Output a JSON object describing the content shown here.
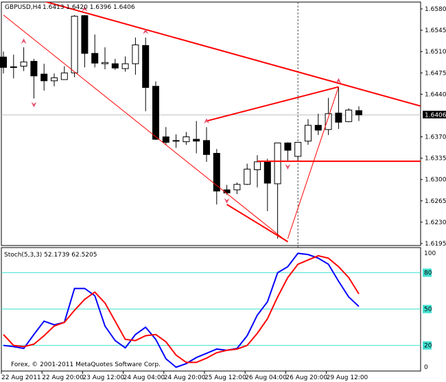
{
  "header": {
    "symbol": "GBPUSD,H4",
    "ohlc": "1.6413 1.6420 1.6396 1.6406"
  },
  "indicator": {
    "label": "Stoch(5,3,3) 52.1739 62.5205"
  },
  "copyright": "Forex, © 2001-2011 MetaQuotes Software Corp.",
  "colors": {
    "background": "#ffffff",
    "bull_body": "#ffffff",
    "bear_body": "#000000",
    "trend_lines": "#ff0000",
    "fractals": "#e8506e",
    "stoch_main": "#0000ff",
    "stoch_signal": "#ff0000",
    "stoch_levels": "#40e0d0",
    "price_line": "#c0c0c0"
  },
  "chart_data": [
    {
      "type": "candlestick",
      "title": "GBPUSD,H4",
      "price_axis": {
        "min": 1.6195,
        "max": 1.658,
        "ticks": [
          "1.6580",
          "1.6545",
          "1.6510",
          "1.6475",
          "1.6440",
          "1.6370",
          "1.6335",
          "1.6300",
          "1.6265",
          "1.6230",
          "1.6195"
        ],
        "current_price": "1.6406"
      },
      "time_labels": [
        "22 Aug 2011",
        "22 Aug 20:00",
        "23 Aug 12:00",
        "24 Aug 04:00",
        "24 Aug 20:00",
        "25 Aug 12:00",
        "26 Aug 04:00",
        "26 Aug 20:00",
        "29 Aug 12:00"
      ],
      "time_label_every_bars": 4,
      "candles": [
        [
          1.6501,
          1.651,
          1.6474,
          1.6484
        ],
        [
          1.6485,
          1.6505,
          1.6466,
          1.6485
        ],
        [
          1.6486,
          1.6517,
          1.6478,
          1.6493
        ],
        [
          1.6494,
          1.6498,
          1.6433,
          1.647
        ],
        [
          1.6473,
          1.649,
          1.6446,
          1.6462
        ],
        [
          1.6462,
          1.6474,
          1.6453,
          1.6467
        ],
        [
          1.6464,
          1.6486,
          1.6464,
          1.6475
        ],
        [
          1.6475,
          1.657,
          1.6468,
          1.6568
        ],
        [
          1.6569,
          1.657,
          1.6484,
          1.6507
        ],
        [
          1.6507,
          1.6538,
          1.6484,
          1.6491
        ],
        [
          1.649,
          1.6517,
          1.6481,
          1.6492
        ],
        [
          1.649,
          1.6498,
          1.648,
          1.6483
        ],
        [
          1.6482,
          1.6502,
          1.6477,
          1.649
        ],
        [
          1.649,
          1.6533,
          1.6472,
          1.6521
        ],
        [
          1.652,
          1.6533,
          1.6412,
          1.6451
        ],
        [
          1.6453,
          1.6461,
          1.6365,
          1.6366
        ],
        [
          1.637,
          1.6386,
          1.6357,
          1.6361
        ],
        [
          1.6364,
          1.6374,
          1.6352,
          1.6364
        ],
        [
          1.6362,
          1.6378,
          1.6357,
          1.637
        ],
        [
          1.6366,
          1.6396,
          1.6343,
          1.6363
        ],
        [
          1.6364,
          1.6386,
          1.6329,
          1.6341
        ],
        [
          1.6343,
          1.635,
          1.6259,
          1.6281
        ],
        [
          1.6283,
          1.6291,
          1.6275,
          1.6278
        ],
        [
          1.6283,
          1.6295,
          1.6276,
          1.6292
        ],
        [
          1.6292,
          1.6326,
          1.6291,
          1.6317
        ],
        [
          1.6316,
          1.634,
          1.6287,
          1.6329
        ],
        [
          1.6329,
          1.6334,
          1.6248,
          1.6294
        ],
        [
          1.6293,
          1.636,
          1.6203,
          1.636
        ],
        [
          1.636,
          1.6361,
          1.6331,
          1.6348
        ],
        [
          1.6338,
          1.6361,
          1.6331,
          1.6361
        ],
        [
          1.6363,
          1.6399,
          1.6357,
          1.6389
        ],
        [
          1.6389,
          1.6408,
          1.6373,
          1.6381
        ],
        [
          1.6382,
          1.6434,
          1.6373,
          1.6408
        ],
        [
          1.6409,
          1.6452,
          1.6383,
          1.6394
        ],
        [
          1.6395,
          1.6417,
          1.6394,
          1.6414
        ],
        [
          1.6413,
          1.642,
          1.6396,
          1.6406
        ]
      ],
      "trend_lines": [
        {
          "from": [
            8,
            1.6574
          ],
          "to": [
            33,
            1.6458
          ],
          "width": "thick",
          "extend": true
        },
        {
          "from": [
            0,
            1.657
          ],
          "to": [
            28,
            1.6197
          ],
          "width": "thin",
          "extend": false
        },
        {
          "from": [
            20,
            1.6396
          ],
          "to": [
            33,
            1.6452
          ],
          "width": "thick",
          "extend": false
        },
        {
          "from": [
            33,
            1.6452
          ],
          "to": [
            28,
            1.6203
          ],
          "width": "thin",
          "extend": false
        },
        {
          "from": [
            22,
            1.6259
          ],
          "to": [
            28,
            1.6198
          ],
          "width": "thick",
          "extend": false
        }
      ],
      "horizontal_line": {
        "price": 1.633,
        "from_bar": 25
      },
      "vertical_dashed_line_bar": 29,
      "fractals": [
        {
          "bar": 2,
          "dir": "up"
        },
        {
          "bar": 8,
          "dir": "up"
        },
        {
          "bar": 14,
          "dir": "up"
        },
        {
          "bar": 20,
          "dir": "up"
        },
        {
          "bar": 33,
          "dir": "up"
        },
        {
          "bar": 3,
          "dir": "down"
        },
        {
          "bar": 22,
          "dir": "down"
        },
        {
          "bar": 28,
          "dir": "down"
        }
      ]
    },
    {
      "type": "line",
      "title": "Stoch(5,3,3)",
      "ylim": [
        0,
        100
      ],
      "levels": [
        80,
        50,
        20
      ],
      "axis_ticks": [
        "100",
        "80",
        "50",
        "20",
        "0"
      ],
      "series": [
        {
          "values": [
            20,
            19,
            17.5,
            29,
            40,
            37,
            39,
            67,
            67,
            61,
            36,
            24,
            18,
            29,
            35,
            25,
            9,
            2,
            5,
            10,
            13.5,
            17,
            16,
            17.5,
            28,
            45,
            56,
            80,
            85,
            96,
            95,
            92,
            87,
            73,
            60,
            52.1739
          ]
        },
        {
          "values": [
            29,
            20,
            19,
            21,
            28,
            36,
            39,
            49,
            58,
            64,
            55,
            40,
            25,
            24,
            28,
            29,
            23,
            12,
            6,
            6,
            9.5,
            14,
            16,
            17,
            20,
            30,
            42,
            60,
            76,
            87,
            90.5,
            94,
            92,
            85,
            76,
            62.5205
          ]
        }
      ]
    }
  ]
}
